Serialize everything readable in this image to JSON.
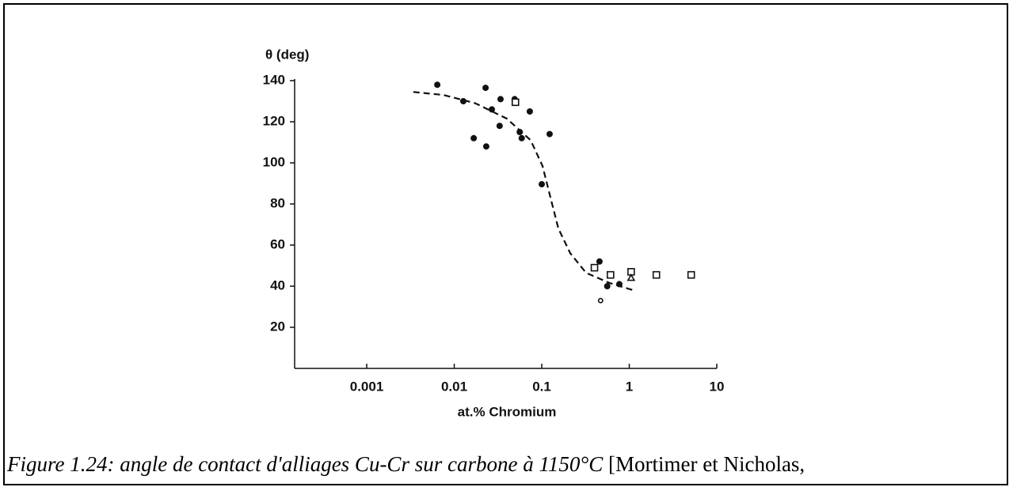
{
  "chart_data": {
    "type": "scatter",
    "ylabel": "θ (deg)",
    "xlabel": "at.% Chromium",
    "xscale": "log",
    "xlim": [
      0.00015,
      10
    ],
    "xticks": [
      0.001,
      0.01,
      0.1,
      1,
      10
    ],
    "ylim": [
      0,
      140
    ],
    "yticks": [
      20,
      40,
      60,
      80,
      100,
      120,
      140
    ],
    "color": "#111111",
    "series": [
      {
        "marker": "circle",
        "filled": true,
        "x": [
          0.0064,
          0.0127,
          0.0167,
          0.0228,
          0.0232,
          0.0269,
          0.0338,
          0.033,
          0.049,
          0.056,
          0.059,
          0.073,
          0.123,
          0.1,
          0.457,
          0.56,
          0.77
        ],
        "values": [
          138,
          130,
          112,
          136.5,
          108,
          126,
          131,
          118,
          131,
          115,
          112,
          125,
          114,
          89.6,
          52,
          40,
          41
        ]
      },
      {
        "marker": "square",
        "filled": false,
        "x": [
          0.05,
          0.4,
          0.61,
          1.05,
          2.04,
          5.1
        ],
        "values": [
          129.5,
          49,
          45.5,
          47,
          45.5,
          45.5
        ]
      },
      {
        "marker": "triangle",
        "filled": false,
        "x": [
          1.05
        ],
        "values": [
          44
        ]
      },
      {
        "marker": "circle",
        "filled": false,
        "x": [
          0.47
        ],
        "values": [
          33
        ]
      },
      {
        "marker": "line",
        "linestyle": "dashed",
        "x": [
          0.0034,
          0.0076,
          0.0174,
          0.04,
          0.0747,
          0.102,
          0.126,
          0.155,
          0.212,
          0.321,
          0.6,
          1.12
        ],
        "values": [
          134.5,
          133,
          129,
          121.5,
          111,
          98.5,
          83,
          68,
          56,
          46.5,
          41.5,
          38
        ]
      }
    ]
  },
  "caption": {
    "italic": "Figure 1.24: angle de contact d'alliages Cu-Cr sur carbone à 1150°C",
    "text": "[Mortimer et Nicholas,"
  }
}
